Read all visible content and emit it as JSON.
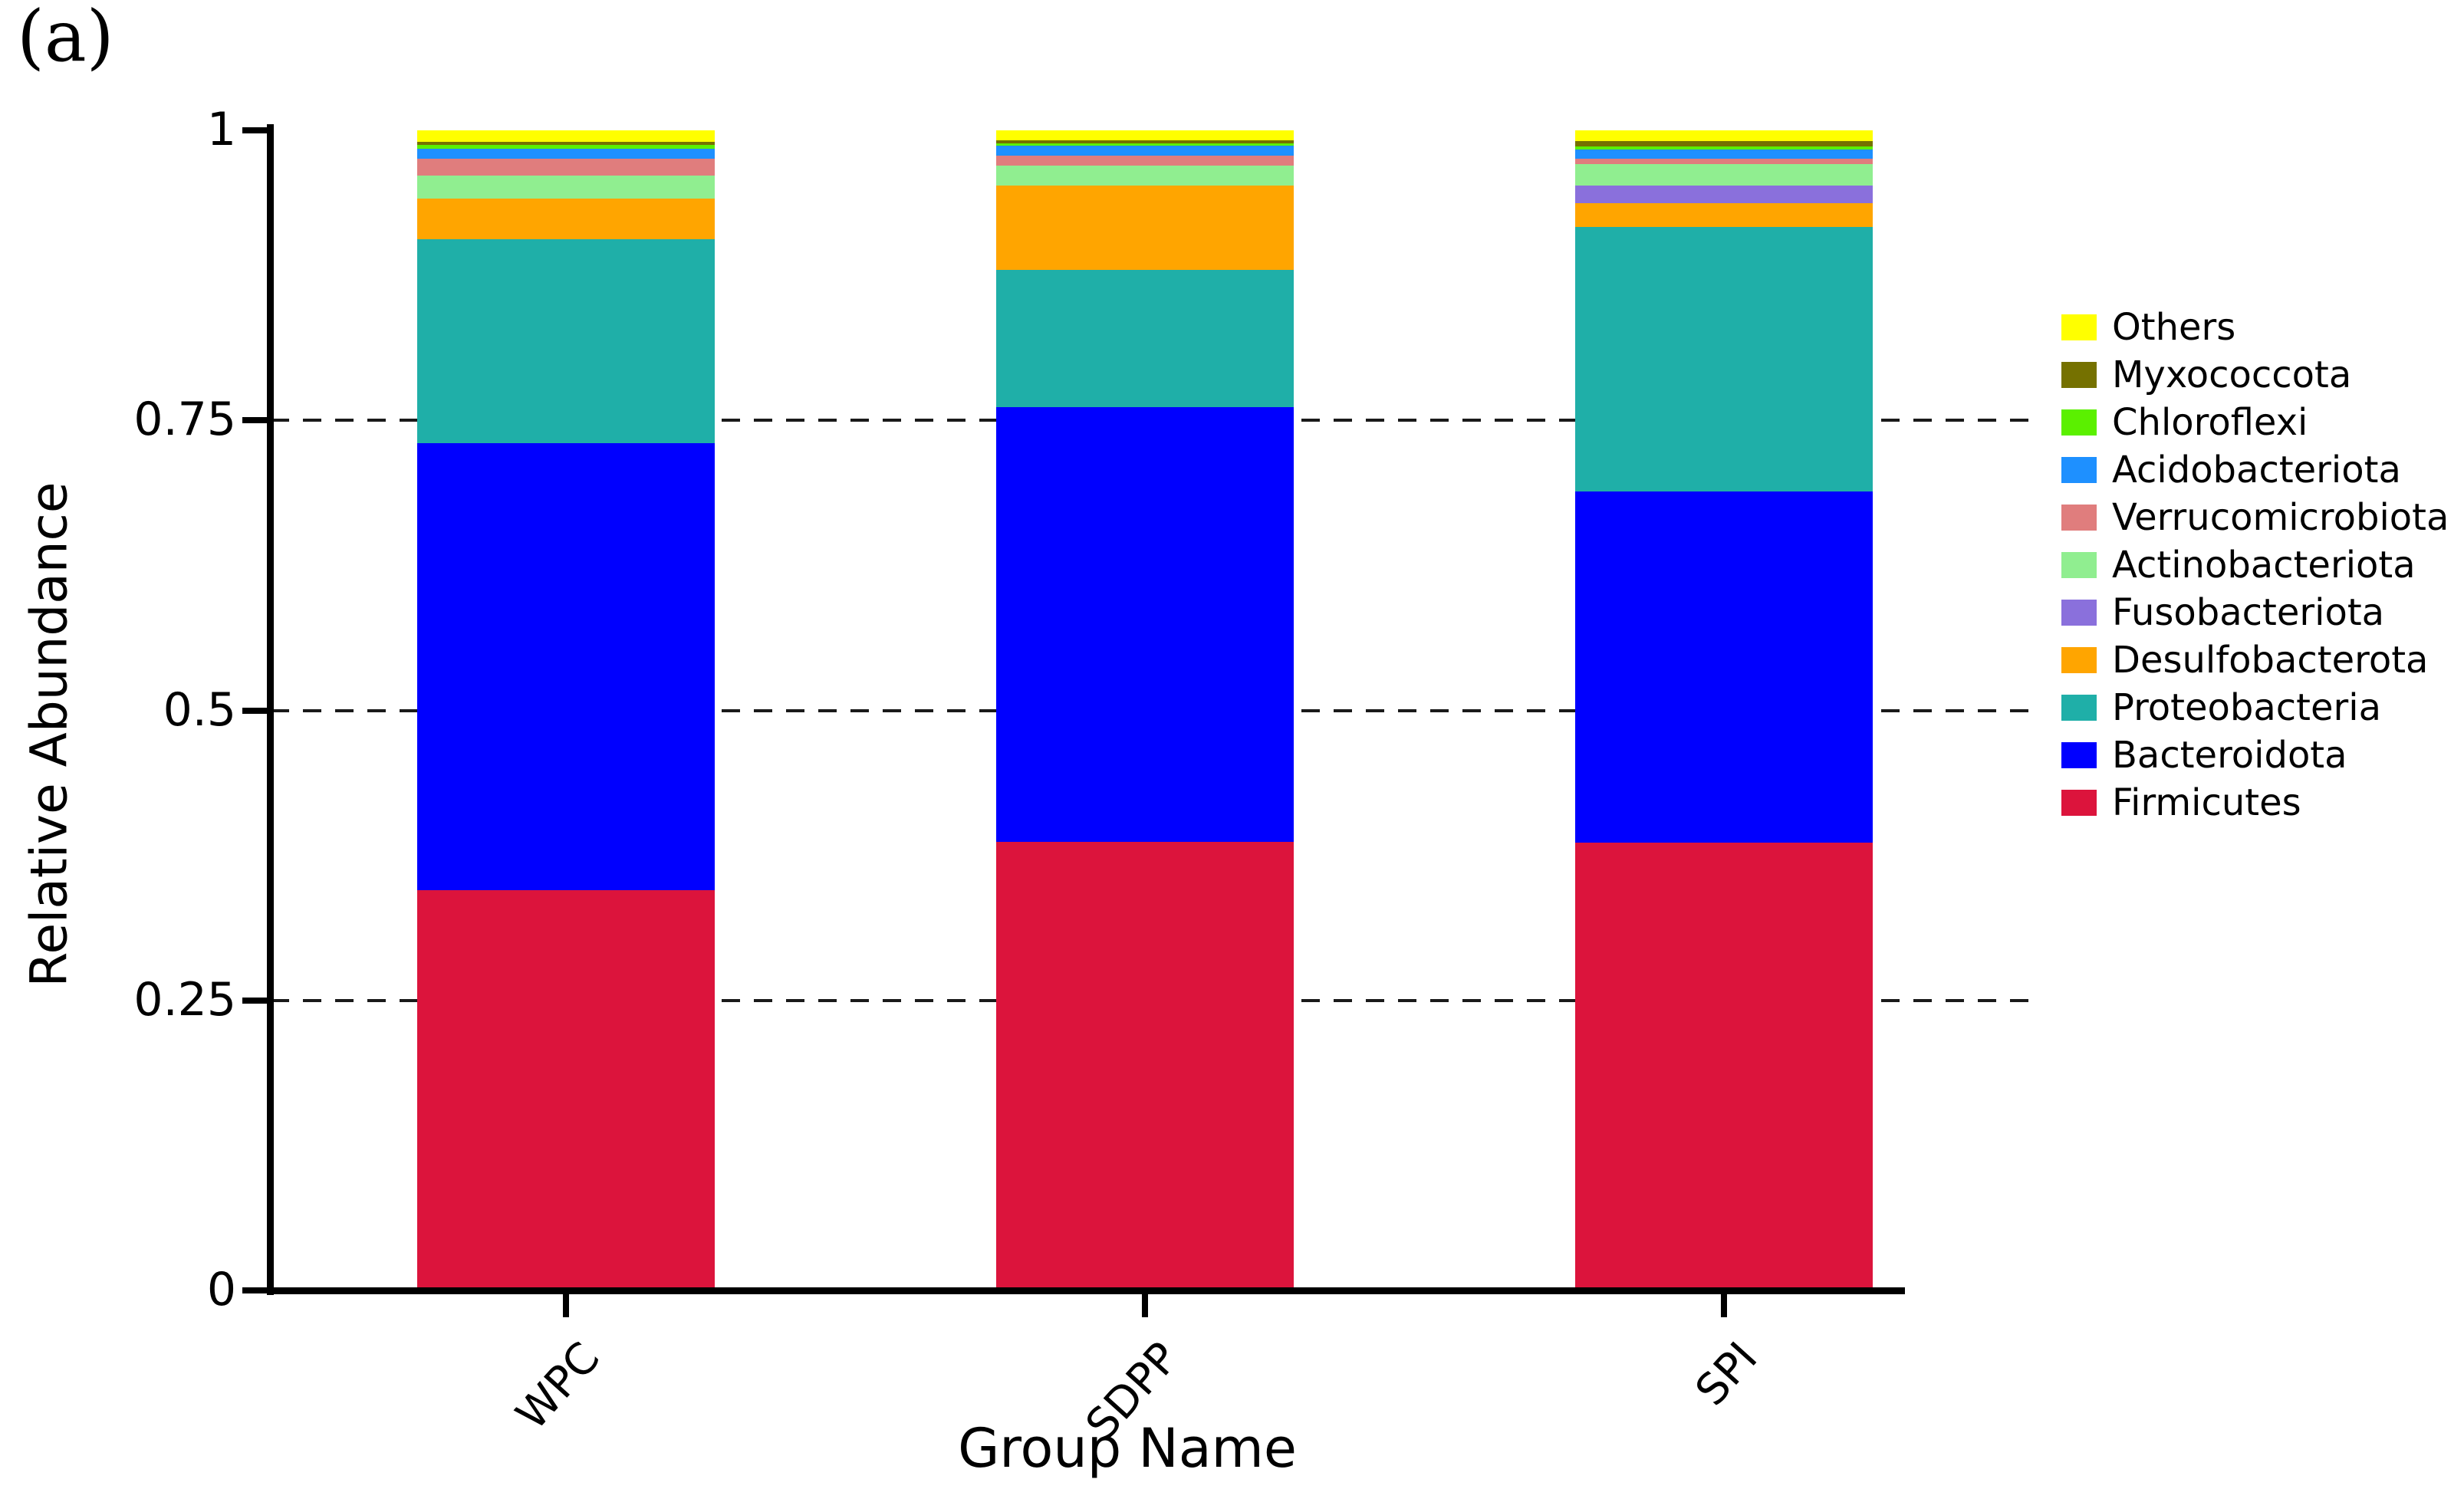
{
  "panel_label": "(a)",
  "axis": {
    "ylabel": "Relative Abundance",
    "xlabel": "Group Name",
    "yticks": [
      {
        "label": "1",
        "value": 1
      },
      {
        "label": "0.75",
        "value": 0.75
      },
      {
        "label": "0.5",
        "value": 0.5
      },
      {
        "label": "0.25",
        "value": 0.25
      },
      {
        "label": "0",
        "value": 0
      }
    ],
    "gridline_values": [
      0.75,
      0.5,
      0.25
    ]
  },
  "chart_data": {
    "type": "bar",
    "stacked": true,
    "orientation": "vertical",
    "title": "",
    "xlabel": "Group Name",
    "ylabel": "Relative Abundance",
    "categories": [
      "WPC",
      "SDPP",
      "SPI"
    ],
    "ylim": [
      0,
      1
    ],
    "grid": "horizontal dashed lines at 0.25, 0.5, 0.75",
    "legend_position": "right",
    "series_note": "legend order top-to-bottom; values are relative abundance fractions per category [WPC, SDPP, SPI]; bars stack with first series on top, Firmicutes at bottom",
    "series": [
      {
        "name": "Others",
        "color": "#FFFF00",
        "values": [
          0.01,
          0.0085,
          0.0095
        ]
      },
      {
        "name": "Myxococcota",
        "color": "#757100",
        "values": [
          0.0025,
          0.0025,
          0.0045
        ]
      },
      {
        "name": "Chloroflexi",
        "color": "#5BF000",
        "values": [
          0.0035,
          0.002,
          0.0025
        ]
      },
      {
        "name": "Acidobacteriota",
        "color": "#1E90FF",
        "values": [
          0.0085,
          0.009,
          0.008
        ]
      },
      {
        "name": "Verrucomicrobiota",
        "color": "#E07D7D",
        "values": [
          0.0145,
          0.0085,
          0.0045
        ]
      },
      {
        "name": "Actinobacteriota",
        "color": "#90EE90",
        "values": [
          0.02,
          0.017,
          0.0185
        ]
      },
      {
        "name": "Fusobacteriota",
        "color": "#8A70DC",
        "values": [
          0.0,
          0.0,
          0.015
        ]
      },
      {
        "name": "Desulfobacterota",
        "color": "#FFA500",
        "values": [
          0.035,
          0.073,
          0.021
        ]
      },
      {
        "name": "Proteobacteria",
        "color": "#1FAFA8",
        "values": [
          0.176,
          0.118,
          0.228
        ]
      },
      {
        "name": "Bacteroidota",
        "color": "#0000FF",
        "values": [
          0.385,
          0.375,
          0.3025
        ]
      },
      {
        "name": "Firmicutes",
        "color": "#DC143C",
        "values": [
          0.345,
          0.3865,
          0.386
        ]
      }
    ]
  }
}
